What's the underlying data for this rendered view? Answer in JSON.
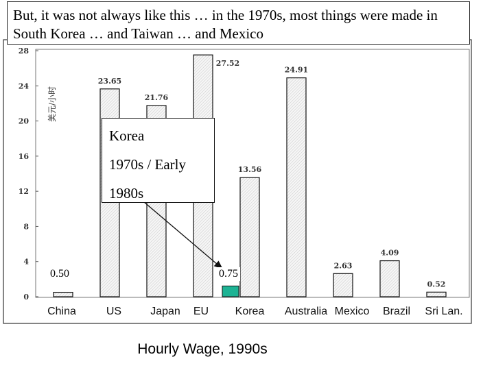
{
  "caption": "But, it was not always like this … in the 1970s, most things were made in South Korea … and Taiwan … and Mexico",
  "callout": {
    "line1": "Korea",
    "line2": "1970s / Early",
    "line3": "1980s"
  },
  "highlight_labels": {
    "china_1970s": "0.50",
    "korea_1970s": "0.75"
  },
  "colors": {
    "bar_fill": "#f4f4f4",
    "bar_stroke": "#111111",
    "highlight": "#1db394",
    "frame": "#333333"
  },
  "chart_data": {
    "type": "bar",
    "title": "Hourly Wage, 1990s",
    "ylabel": "美元/小时",
    "xlabel": "",
    "ylim": [
      0,
      28
    ],
    "yticks": [
      "0",
      "4",
      "8",
      "12",
      "16",
      "20",
      "24",
      "28"
    ],
    "categories": [
      "China",
      "US",
      "Japan",
      "EU",
      "Korea",
      "Australia",
      "Mexico",
      "Brazil",
      "Sri Lan."
    ],
    "values": [
      0.5,
      23.65,
      21.76,
      27.52,
      13.56,
      24.91,
      2.63,
      4.09,
      0.52
    ],
    "value_labels": [
      "",
      "23.65",
      "21.76",
      "27.52",
      "13.56",
      "24.91",
      "2.63",
      "4.09",
      "0.52"
    ],
    "highlight": {
      "category": "Korea",
      "value": 0.75,
      "label": "0.75",
      "color": "#1db394"
    },
    "grid": false
  }
}
